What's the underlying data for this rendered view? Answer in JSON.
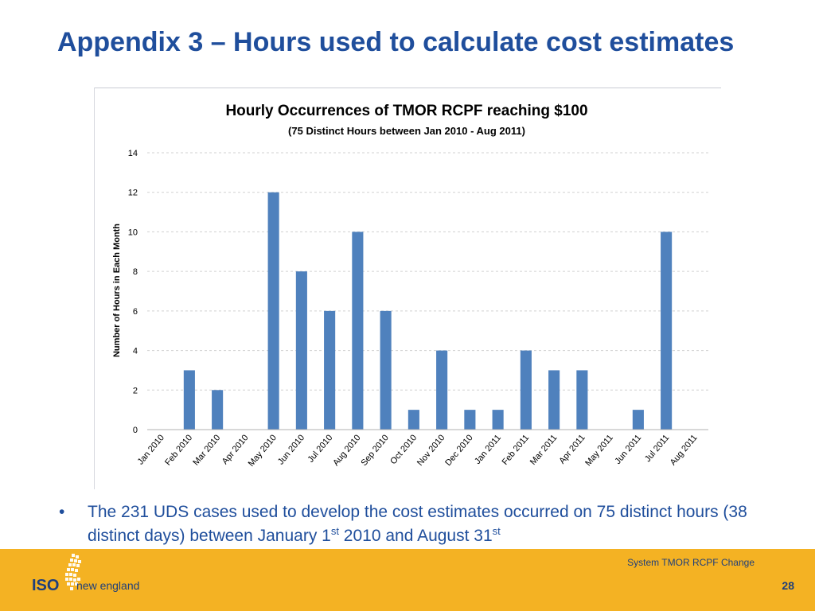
{
  "slide": {
    "title": "Appendix 3 – Hours used to calculate cost estimates",
    "bullet": {
      "part1": "The 231 UDS cases used to develop the cost estimates occurred on 75 distinct hours (38 distinct days) between January 1",
      "sup1": "st",
      "part2": " 2010 and August 31",
      "sup2": "st"
    },
    "footer": {
      "caption": "System TMOR RCPF Change",
      "page_number": "28",
      "logo_iso": "ISO",
      "logo_name": "new england"
    }
  },
  "chart_data": {
    "type": "bar",
    "title": "Hourly Occurrences of TMOR RCPF reaching $100",
    "subtitle": "(75 Distinct Hours between Jan 2010 - Aug 2011)",
    "xlabel": "",
    "ylabel": "Number of Hours in Each Month",
    "ylim": [
      0,
      14
    ],
    "yticks": [
      0,
      2,
      4,
      6,
      8,
      10,
      12,
      14
    ],
    "grid": true,
    "legend": "none",
    "bar_color": "#4f81bd",
    "categories": [
      "Jan 2010",
      "Feb 2010",
      "Mar 2010",
      "Apr 2010",
      "May 2010",
      "Jun 2010",
      "Jul 2010",
      "Aug 2010",
      "Sep 2010",
      "Oct 2010",
      "Nov 2010",
      "Dec 2010",
      "Jan 2011",
      "Feb 2011",
      "Mar 2011",
      "Apr 2011",
      "May 2011",
      "Jun 2011",
      "Jul 2011",
      "Aug 2011"
    ],
    "values": [
      0,
      3,
      2,
      0,
      12,
      8,
      6,
      10,
      6,
      1,
      4,
      1,
      1,
      4,
      3,
      3,
      0,
      1,
      10,
      0
    ]
  }
}
